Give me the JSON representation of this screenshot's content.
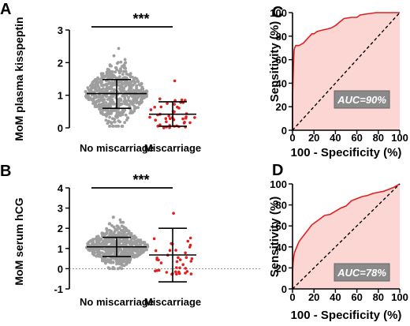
{
  "chart_data": [
    {
      "panel": "A",
      "type": "scatter",
      "ylabel": "MoM plasma kisspeptin",
      "yticks": [
        "0",
        "1",
        "2",
        "3"
      ],
      "ylim": [
        0,
        3
      ],
      "categories": [
        "No miscarriage",
        "Miscarriage"
      ],
      "significance": "***",
      "groups": [
        {
          "name": "No miscarriage",
          "mean": 1.05,
          "sd_low": 0.6,
          "sd_high": 1.48,
          "min": 0.05,
          "max": 2.65,
          "color": "#9e9e9e",
          "n": 600
        },
        {
          "name": "Miscarriage",
          "mean": 0.42,
          "sd_low": 0.05,
          "sd_high": 0.8,
          "min": 0.0,
          "max": 1.5,
          "color": "#e02020",
          "n": 45
        }
      ]
    },
    {
      "panel": "B",
      "type": "scatter",
      "ylabel": "MoM serum hCG",
      "yticks": [
        "-1",
        "0",
        "1",
        "2",
        "3",
        "4"
      ],
      "ylim": [
        -1,
        4
      ],
      "categories": [
        "No miscarriage",
        "Miscarriage"
      ],
      "significance": "***",
      "groups": [
        {
          "name": "No miscarriage",
          "mean": 1.08,
          "sd_low": 0.6,
          "sd_high": 1.55,
          "min": 0.0,
          "max": 3.3,
          "color": "#9e9e9e",
          "n": 600
        },
        {
          "name": "Miscarriage",
          "mean": 0.68,
          "sd_low": -0.65,
          "sd_high": 2.0,
          "min": -0.3,
          "max": 2.8,
          "color": "#e02020",
          "n": 40
        }
      ]
    },
    {
      "panel": "C",
      "type": "line",
      "xlabel": "100 - Specificity (%)",
      "ylabel": "Sensitivity (%)",
      "xticks": [
        "0",
        "20",
        "40",
        "60",
        "80",
        "100"
      ],
      "yticks": [
        "0",
        "20",
        "40",
        "60",
        "80",
        "100"
      ],
      "xlim": [
        0,
        100
      ],
      "ylim": [
        0,
        100
      ],
      "auc_label": "AUC=90%",
      "roc": [
        [
          0,
          0
        ],
        [
          0,
          28
        ],
        [
          0.5,
          45
        ],
        [
          1,
          60
        ],
        [
          1.5,
          68
        ],
        [
          2,
          70
        ],
        [
          3,
          72
        ],
        [
          6,
          72
        ],
        [
          8,
          73
        ],
        [
          10,
          74
        ],
        [
          12,
          76
        ],
        [
          14,
          78
        ],
        [
          16,
          80
        ],
        [
          18,
          82
        ],
        [
          20,
          82
        ],
        [
          23,
          84
        ],
        [
          27,
          85
        ],
        [
          32,
          86
        ],
        [
          36,
          87
        ],
        [
          40,
          89
        ],
        [
          44,
          92
        ],
        [
          48,
          95
        ],
        [
          55,
          96
        ],
        [
          60,
          96
        ],
        [
          63,
          98
        ],
        [
          70,
          99
        ],
        [
          78,
          100
        ],
        [
          100,
          100
        ]
      ]
    },
    {
      "panel": "D",
      "type": "line",
      "xlabel": "100 - Specificity (%)",
      "ylabel": "Sensitivity (%)",
      "xticks": [
        "0",
        "20",
        "40",
        "60",
        "80",
        "100"
      ],
      "yticks": [
        "0",
        "20",
        "40",
        "60",
        "80",
        "100"
      ],
      "xlim": [
        0,
        100
      ],
      "ylim": [
        0,
        100
      ],
      "auc_label": "AUC=78%",
      "roc": [
        [
          0,
          0
        ],
        [
          0,
          15
        ],
        [
          0.5,
          25
        ],
        [
          1,
          30
        ],
        [
          2,
          35
        ],
        [
          4,
          40
        ],
        [
          6,
          45
        ],
        [
          9,
          49
        ],
        [
          12,
          53
        ],
        [
          15,
          57
        ],
        [
          18,
          61
        ],
        [
          22,
          64
        ],
        [
          26,
          67
        ],
        [
          30,
          70
        ],
        [
          35,
          71
        ],
        [
          40,
          74
        ],
        [
          45,
          77
        ],
        [
          50,
          79
        ],
        [
          55,
          84
        ],
        [
          60,
          86
        ],
        [
          65,
          88
        ],
        [
          70,
          89
        ],
        [
          75,
          91
        ],
        [
          80,
          92
        ],
        [
          85,
          93
        ],
        [
          90,
          95
        ],
        [
          95,
          97
        ],
        [
          100,
          100
        ]
      ]
    }
  ]
}
